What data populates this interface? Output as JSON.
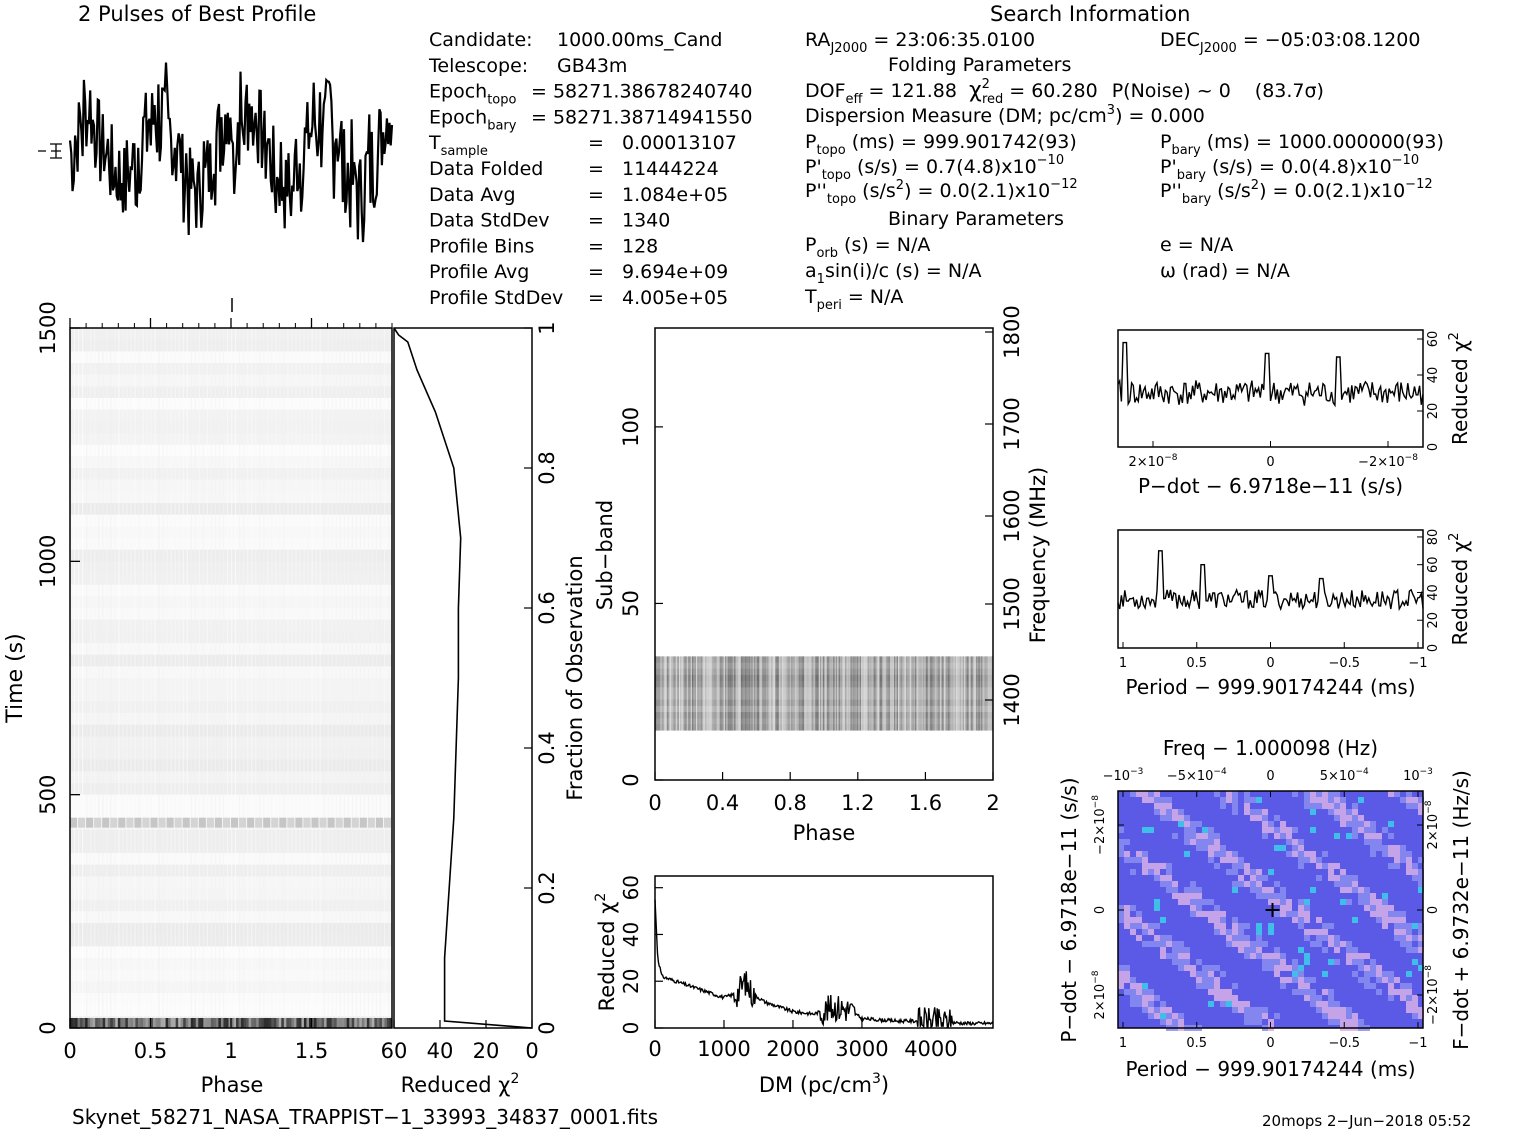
{
  "header": {
    "left_title": "2 Pulses of Best Profile",
    "right_title": "Search Information"
  },
  "info_left": [
    {
      "label": "Candidate:",
      "value": "1000.00ms_Cand"
    },
    {
      "label": "Telescope:",
      "value": "GB43m"
    },
    {
      "label": "Epoch",
      "sub": "topo",
      "value": "= 58271.38678240740"
    },
    {
      "label": "Epoch",
      "sub": "bary",
      "value": "= 58271.38714941550"
    },
    {
      "label": "T",
      "sub": "sample",
      "value": "0.00013107"
    },
    {
      "label": "Data Folded",
      "value": "11444224"
    },
    {
      "label": "Data Avg",
      "value": "1.084e+05"
    },
    {
      "label": "Data StdDev",
      "value": "1340"
    },
    {
      "label": "Profile Bins",
      "value": "128"
    },
    {
      "label": "Profile Avg",
      "value": "9.694e+09"
    },
    {
      "label": "Profile StdDev",
      "value": "4.005e+05"
    }
  ],
  "info_right": {
    "ra": "RA",
    "ra_sub": "J2000",
    "ra_val": "= 23:06:35.0100",
    "dec": "DEC",
    "dec_sub": "J2000",
    "dec_val": "= −05:03:08.1200",
    "folding_title": "Folding Parameters",
    "dof": "DOF",
    "dof_sub": "eff",
    "dof_val": "= 121.88",
    "chi": "χ",
    "chi_sup": "2",
    "chi_sub": "red",
    "chi_val": "= 60.280",
    "pnoise": "P(Noise) ~ 0",
    "sigma": "(83.7σ)",
    "dm_line": "Dispersion Measure (DM; pc/cm",
    "dm_sup": "3",
    "dm_val": ") = 0.000",
    "ptopo": "P",
    "ptopo_sub": "topo",
    "ptopo_val": "(ms) =  999.901742(93)",
    "pbary": "P",
    "pbary_sub": "bary",
    "pbary_val": "(ms) =  1000.000000(93)",
    "pdtopo": "P'",
    "pdtopo_sub": "topo",
    "pdtopo_val": "(s/s) =  0.7(4.8)x10",
    "pdtopo_exp": "−10",
    "pdbary": "P'",
    "pdbary_sub": "bary",
    "pdbary_val": "(s/s) = 0.0(4.8)x10",
    "pdbary_exp": "−10",
    "pddtopo": "P''",
    "pddtopo_sub": "topo",
    "pddtopo_val": "(s/s",
    "pddtopo_sup2": "2",
    "pddtopo_val2": ") = 0.0(2.1)x10",
    "pddtopo_exp": "−12",
    "pddbary": "P''",
    "pddbary_sub": "bary",
    "pddbary_val": "(s/s",
    "pddbary_sup2": "2",
    "pddbary_val2": ") = 0.0(2.1)x10",
    "pddbary_exp": "−12",
    "binary_title": "Binary Parameters",
    "porb": "P",
    "porb_sub": "orb",
    "porb_val": "(s) = N/A",
    "ecc": "e = N/A",
    "asini": "a",
    "asini_sub": "1",
    "asini_val": "sin(i)/c (s) = N/A",
    "omega": "ω (rad) = N/A",
    "tperi": "T",
    "tperi_sub": "peri",
    "tperi_val": "= N/A"
  },
  "footer": {
    "filename": "Skynet_58271_NASA_TRAPPIST−1_33993_34837_0001.fits",
    "stamp": "20mops  2−Jun−2018 05:52"
  },
  "chart_data": [
    {
      "id": "time_phase",
      "type": "heatmap",
      "xlabel": "Phase",
      "ylabel": "Time (s)",
      "xlim": [
        0,
        2
      ],
      "ylim": [
        0,
        1500
      ],
      "xticks": [
        "0",
        "0.5",
        "1",
        "1.5"
      ],
      "yticks": [
        "0",
        "500",
        "1000",
        "1500"
      ],
      "features": [
        {
          "time_s": 440,
          "note": "faint grey row"
        },
        {
          "time_s": 10,
          "note": "dark bottom row"
        }
      ]
    },
    {
      "id": "time_chi",
      "type": "line",
      "xlabel": "Reduced χ",
      "xlabel_sup": "2",
      "ylabel": "Fraction of Observation",
      "xlim": [
        60,
        0
      ],
      "ylim": [
        0,
        1
      ],
      "xticks": [
        "60",
        "40",
        "20",
        "0"
      ],
      "yticks": [
        "0",
        "0.2",
        "0.4",
        "0.6",
        "0.8",
        "1"
      ],
      "points": [
        [
          0,
          0
        ],
        [
          38,
          0.01
        ],
        [
          38,
          0.1
        ],
        [
          36,
          0.2
        ],
        [
          34,
          0.3
        ],
        [
          33,
          0.4
        ],
        [
          32,
          0.5
        ],
        [
          32,
          0.6
        ],
        [
          31,
          0.7
        ],
        [
          34,
          0.8
        ],
        [
          42,
          0.88
        ],
        [
          50,
          0.94
        ],
        [
          54,
          0.98
        ],
        [
          58,
          0.99
        ],
        [
          60,
          1.0
        ]
      ]
    },
    {
      "id": "subband_phase",
      "type": "heatmap",
      "xlabel": "Phase",
      "ylabel": "Sub−band",
      "y2label": "Frequency (MHz)",
      "xlim": [
        0,
        2
      ],
      "ylim": [
        0,
        128
      ],
      "xticks": [
        "0",
        "0.4",
        "0.8",
        "1.2",
        "1.6",
        "2"
      ],
      "yticks": [
        "0",
        "50",
        "100"
      ],
      "y2ticks": [
        "1400",
        "1500",
        "1600",
        "1700",
        "1800"
      ],
      "band": [
        14,
        35
      ]
    },
    {
      "id": "dm_chi",
      "type": "line",
      "xlabel": "DM (pc/cm",
      "xlabel_sup": "3",
      "xlabel_end": ")",
      "ylabel": "Reduced χ",
      "ylabel_sup": "2",
      "xlim": [
        0,
        4900
      ],
      "ylim": [
        0,
        65
      ],
      "xticks": [
        "0",
        "1000",
        "2000",
        "3000",
        "4000"
      ],
      "yticks": [
        "0",
        "20",
        "40",
        "60"
      ],
      "points": [
        [
          0,
          55
        ],
        [
          40,
          30
        ],
        [
          100,
          22
        ],
        [
          400,
          19
        ],
        [
          700,
          16
        ],
        [
          1000,
          13
        ],
        [
          1200,
          15
        ],
        [
          1300,
          20
        ],
        [
          1400,
          15
        ],
        [
          1600,
          11
        ],
        [
          2000,
          7
        ],
        [
          2300,
          6
        ],
        [
          2600,
          9
        ],
        [
          2800,
          8
        ],
        [
          3000,
          4
        ],
        [
          3500,
          3
        ],
        [
          4000,
          3
        ],
        [
          4500,
          2
        ],
        [
          4900,
          2
        ]
      ]
    },
    {
      "id": "pdot_chi",
      "type": "line",
      "xlabel": "P−dot − 6.9718e−11 (s/s)",
      "ylabel": "Reduced χ",
      "ylabel_sup": "2",
      "xticks": [
        "2×10",
        "0",
        "−2×10"
      ],
      "xtick_exp": "−8",
      "yticks": [
        "0",
        "20",
        "40",
        "60"
      ],
      "ylim": [
        0,
        65
      ],
      "baseline": 30,
      "peak": 55
    },
    {
      "id": "period_chi",
      "type": "line",
      "xlabel": "Period − 999.90174244 (ms)",
      "ylabel": "Reduced χ",
      "ylabel_sup": "2",
      "xticks": [
        "1",
        "0.5",
        "0",
        "−0.5",
        "−1"
      ],
      "yticks": [
        "0",
        "20",
        "40",
        "60",
        "80"
      ],
      "ylim": [
        0,
        85
      ],
      "baseline": 35,
      "peak": 70
    },
    {
      "id": "period_pdot",
      "type": "heatmap",
      "title": "Freq − 1.000098 (Hz)",
      "xlabel": "Period − 999.90174244 (ms)",
      "ylabel": "P−dot − 6.9718e−11 (s/s)",
      "y2label": "F−dot + 6.9732e−11 (Hz/s)",
      "xticks": [
        "1",
        "0.5",
        "0",
        "−0.5",
        "−1"
      ],
      "x2ticks": [
        "−10",
        "−5×10",
        "0",
        "5×10",
        "10"
      ],
      "x2tick_exps": [
        "−3",
        "−4",
        "",
        "−4",
        "−3"
      ],
      "yticks": [
        "−2×10",
        "0",
        "2×10"
      ],
      "y2ticks": [
        "2×10",
        "0",
        "−2×10"
      ],
      "ytick_exp": "−8",
      "colors": {
        "base": "#5a5ae6",
        "light": "#d8b0e8",
        "cyan": "#3ad0e8"
      }
    }
  ],
  "pulse_profile": {
    "type": "line",
    "xlim": [
      0,
      2
    ],
    "ylim": [
      0,
      1
    ],
    "cycles": 2
  }
}
